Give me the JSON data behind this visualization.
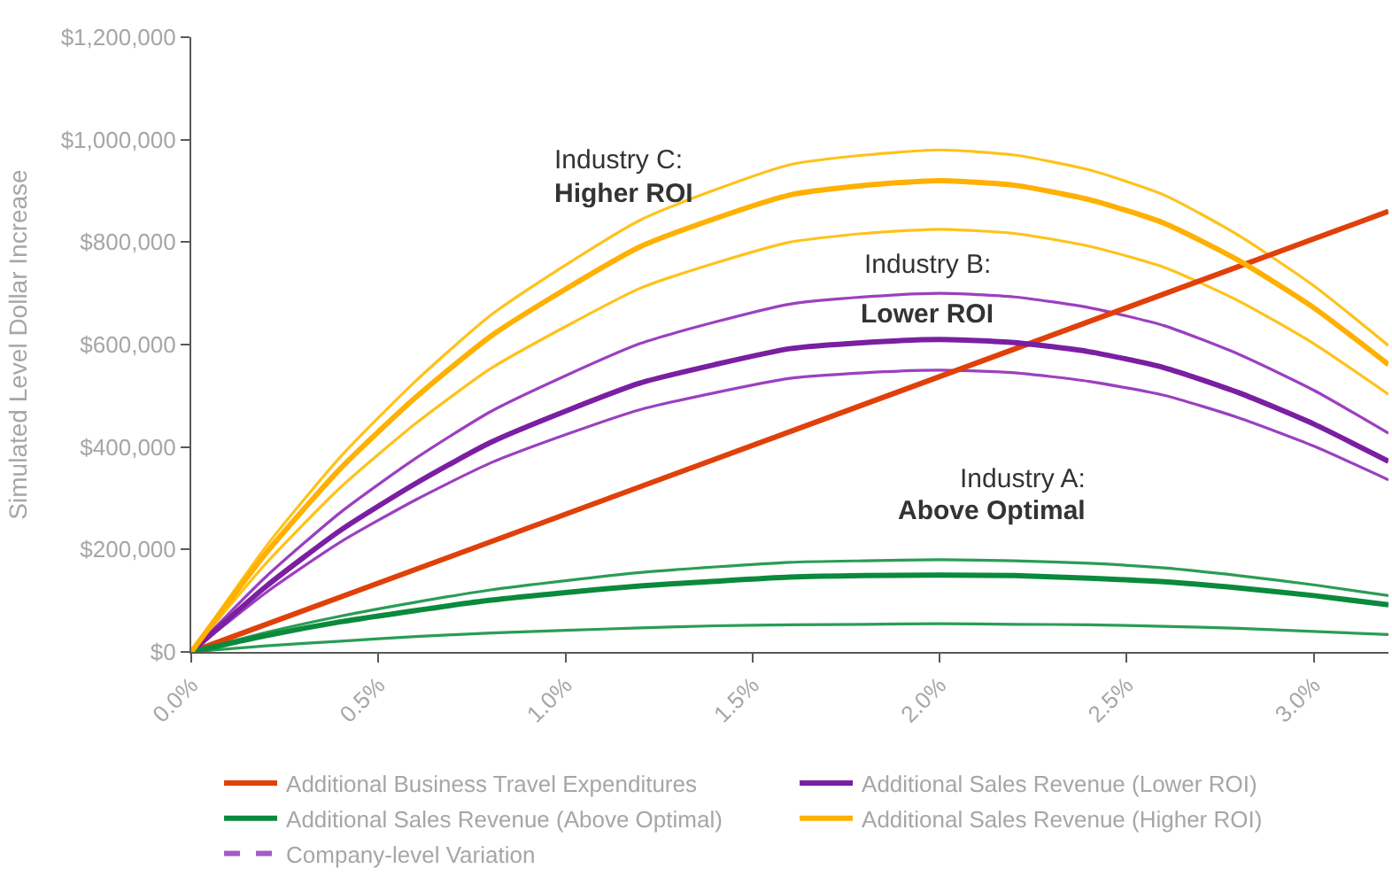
{
  "chart_data": {
    "type": "line",
    "ylabel": "Simulated Level Dollar Increase",
    "xlim": [
      0,
      3.2
    ],
    "xticks": [
      {
        "value": 0,
        "label": "0.0%"
      },
      {
        "value": 0.5,
        "label": "0.5%"
      },
      {
        "value": 1.0,
        "label": "1.0%"
      },
      {
        "value": 1.5,
        "label": "1.5%"
      },
      {
        "value": 2.0,
        "label": "2.0%"
      },
      {
        "value": 2.5,
        "label": "2.5%"
      },
      {
        "value": 3.0,
        "label": "3.0%"
      }
    ],
    "ylim": [
      0,
      1200000
    ],
    "yticks": [
      {
        "value": 0,
        "label": "$0"
      },
      {
        "value": 200000,
        "label": "$200,000"
      },
      {
        "value": 400000,
        "label": "$400,000"
      },
      {
        "value": 600000,
        "label": "$600,000"
      },
      {
        "value": 800000,
        "label": "$800,000"
      },
      {
        "value": 1000000,
        "label": "$1,000,000"
      },
      {
        "value": 1200000,
        "label": "$1,200,000"
      }
    ],
    "legend": "bottom",
    "x": [
      0,
      0.2,
      0.4,
      0.6,
      0.8,
      1.0,
      1.2,
      1.4,
      1.6,
      1.8,
      2.0,
      2.2,
      2.4,
      2.6,
      2.8,
      3.0,
      3.2
    ],
    "series": [
      {
        "color": "#ffc21a",
        "values": [
          0,
          206000,
          382000,
          529000,
          657000,
          755000,
          843000,
          902000,
          951000,
          970000,
          980000,
          970000,
          941000,
          892000,
          813000,
          715000,
          598000
        ]
      },
      {
        "color": "#ffc21a",
        "values": [
          0,
          173000,
          322000,
          446000,
          553000,
          635000,
          710000,
          759000,
          800000,
          817000,
          825000,
          817000,
          792000,
          751000,
          685000,
          602000,
          503000
        ]
      },
      {
        "color": "#9b40c0",
        "values": [
          0,
          147000,
          273000,
          378000,
          469000,
          539000,
          602000,
          644000,
          679000,
          693000,
          700000,
          693000,
          672000,
          637000,
          581000,
          511000,
          427000
        ]
      },
      {
        "color": "#9b40c0",
        "values": [
          0,
          116000,
          215000,
          297000,
          369000,
          424000,
          473000,
          506000,
          534000,
          545000,
          550000,
          545000,
          528000,
          501000,
          457000,
          402000,
          336000
        ]
      },
      {
        "color": "#2a9d55",
        "values": [
          0,
          38000,
          70000,
          97000,
          121000,
          139000,
          155000,
          166000,
          175000,
          178000,
          180000,
          178000,
          173000,
          164000,
          149000,
          131000,
          110000
        ]
      },
      {
        "color": "#2a9d55",
        "values": [
          0,
          12000,
          21000,
          30000,
          37000,
          42000,
          47000,
          51000,
          53000,
          54000,
          55000,
          54000,
          53000,
          50000,
          46000,
          40000,
          34000
        ]
      },
      {
        "name": "Additional Business Travel Expenditures",
        "color": "#e0400a",
        "x": [
          0,
          3.2
        ],
        "values": [
          0,
          860000
        ]
      },
      {
        "name": "Additional Sales Revenue (Lower ROI)",
        "color": "#7a1fa2",
        "values": [
          0,
          128000,
          238000,
          329000,
          409000,
          470000,
          525000,
          561000,
          592000,
          604000,
          610000,
          604000,
          586000,
          555000,
          506000,
          445000,
          372000
        ]
      },
      {
        "name": "Additional Sales Revenue (Above Optimal)",
        "color": "#0a8a3c",
        "values": [
          0,
          32000,
          59000,
          81000,
          101000,
          116000,
          129000,
          138000,
          146000,
          149000,
          150000,
          149000,
          144000,
          137000,
          125000,
          110000,
          92000
        ]
      },
      {
        "name": "Additional Sales Revenue (Higher ROI)",
        "color": "#ffb000",
        "values": [
          0,
          193000,
          359000,
          497000,
          616000,
          708000,
          791000,
          846000,
          892000,
          911000,
          920000,
          911000,
          883000,
          837000,
          764000,
          672000,
          561000
        ]
      },
      {
        "name": "Company-level Variation",
        "color": "#a05cc8",
        "line_style": "dashed",
        "values": [
          null,
          null,
          null,
          null,
          null,
          null,
          null,
          null,
          null,
          null,
          null,
          null,
          null,
          null,
          null,
          null,
          null
        ]
      }
    ],
    "annotations": [
      "Industry C:",
      "Higher ROI",
      "Industry B:",
      "Lower ROI",
      "Industry A:",
      "Above Optimal"
    ]
  }
}
